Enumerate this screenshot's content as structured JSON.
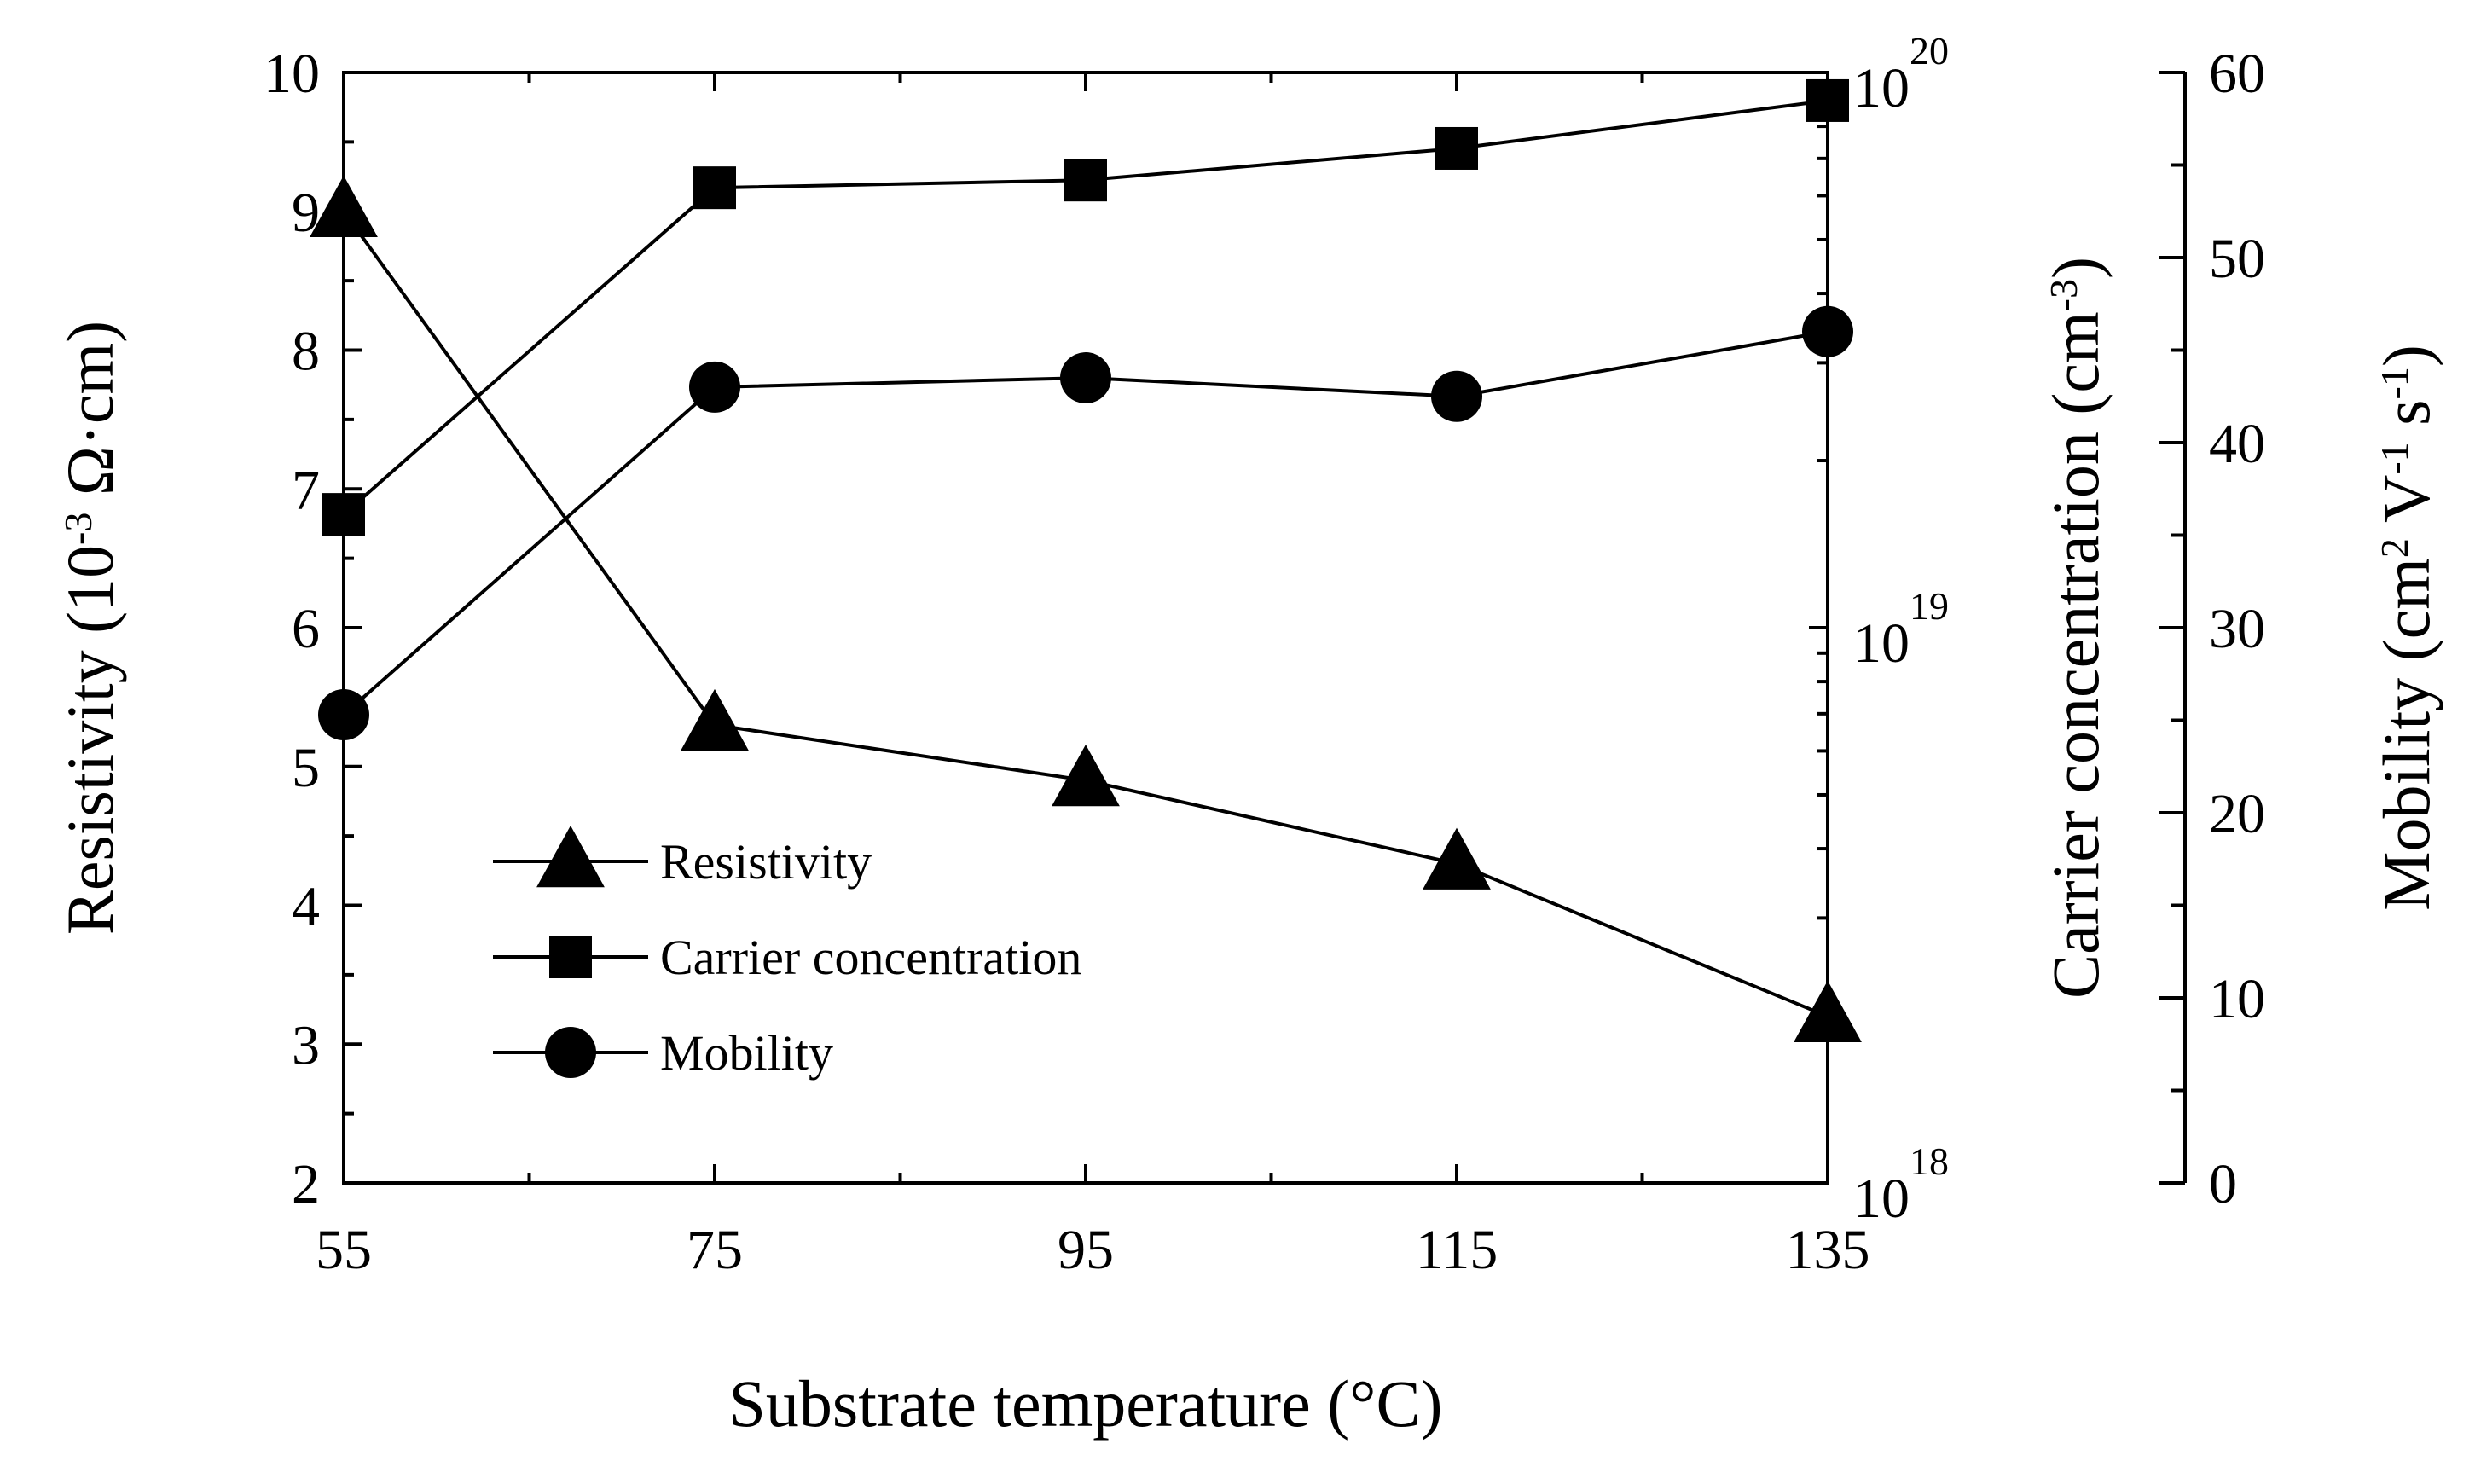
{
  "chart_data": {
    "type": "line",
    "xlabel": "Substrate temperature (°C)",
    "x": [
      55,
      75,
      95,
      115,
      135
    ],
    "xlim": [
      55,
      135
    ],
    "x_ticks": [
      "55",
      "75",
      "95",
      "115",
      "135"
    ],
    "grid": false,
    "legend_position": "lower-left",
    "axes": {
      "left": {
        "label_parts": [
          {
            "text": "Resistivity (10",
            "sup": false
          },
          {
            "text": "-3",
            "sup": true
          },
          {
            "text": " Ω·cm)",
            "sup": false
          }
        ],
        "ylim": [
          2,
          10
        ],
        "ticks": [
          "2",
          "3",
          "4",
          "5",
          "6",
          "7",
          "8",
          "9",
          "10"
        ],
        "scale": "linear"
      },
      "right1": {
        "label_parts": [
          {
            "text": "Carrier concentration (cm",
            "sup": false
          },
          {
            "text": "-3",
            "sup": true
          },
          {
            "text": ")",
            "sup": false
          }
        ],
        "ylim": [
          1e+18,
          1e+20
        ],
        "scale": "log",
        "tick_labels": [
          {
            "value": 1e+18,
            "base": "10",
            "exp": "18"
          },
          {
            "value": 1e+19,
            "base": "10",
            "exp": "19"
          },
          {
            "value": 1e+20,
            "base": "10",
            "exp": "20"
          }
        ]
      },
      "right2": {
        "label_parts": [
          {
            "text": "Mobility (cm",
            "sup": false
          },
          {
            "text": "2",
            "sup": true
          },
          {
            "text": " V",
            "sup": false
          },
          {
            "text": "-1",
            "sup": true
          },
          {
            "text": " s",
            "sup": false
          },
          {
            "text": "-1",
            "sup": true
          },
          {
            "text": ")",
            "sup": false
          }
        ],
        "ylim": [
          0,
          60
        ],
        "ticks": [
          "0",
          "10",
          "20",
          "30",
          "40",
          "50",
          "60"
        ],
        "scale": "linear"
      }
    },
    "series": [
      {
        "name": "Resistivity",
        "axis": "left",
        "marker": "triangle",
        "values": [
          9.0,
          5.3,
          4.9,
          4.3,
          3.2
        ]
      },
      {
        "name": "Carrier concentration",
        "axis": "right1",
        "marker": "square",
        "values": [
          1.6e+19,
          6.2e+19,
          6.4e+19,
          7.3e+19,
          8.9e+19
        ]
      },
      {
        "name": "Mobility",
        "axis": "right2",
        "marker": "circle",
        "values": [
          25.3,
          43.0,
          43.5,
          42.5,
          46.0
        ]
      }
    ]
  }
}
